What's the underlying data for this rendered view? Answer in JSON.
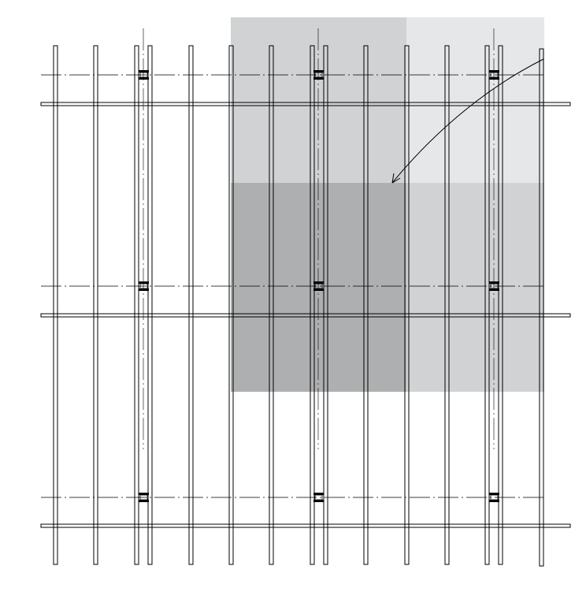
{
  "diagram": {
    "kind": "structural framing plan",
    "colors": {
      "background": "#ffffff",
      "line": "#000000",
      "shade_light": "#e6e7e9",
      "shade_medium": "#d1d2d4",
      "shade_dark": "#aeafb1",
      "connector": "#000000"
    },
    "counts": {
      "beams": 3,
      "column_lines": 3,
      "joists": 10,
      "connectors": 9
    },
    "shaded_regions": [
      {
        "name": "region-upper-left",
        "tone": "medium"
      },
      {
        "name": "region-upper-right",
        "tone": "light"
      },
      {
        "name": "region-lower-left",
        "tone": "dark"
      },
      {
        "name": "region-lower-right",
        "tone": "medium"
      }
    ],
    "callout": {
      "has_arrow": true,
      "label": ""
    }
  }
}
